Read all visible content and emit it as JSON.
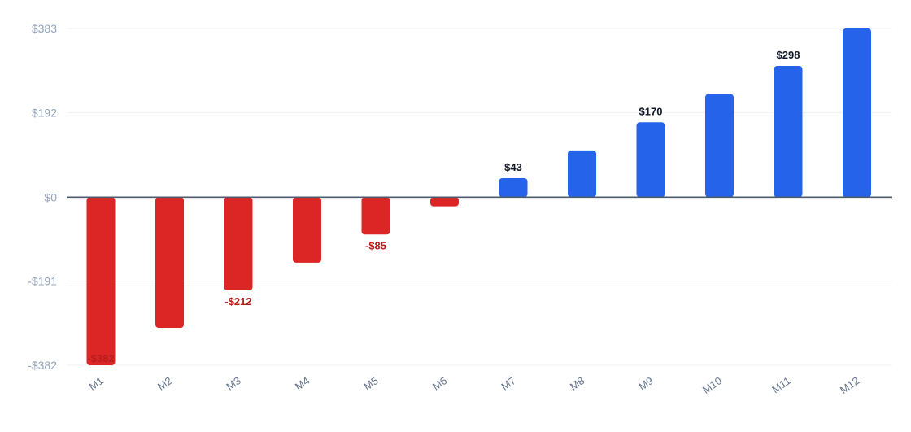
{
  "chart_data": {
    "type": "bar",
    "title": "",
    "xlabel": "",
    "ylabel": "",
    "categories": [
      "M1",
      "M2",
      "M3",
      "M4",
      "M5",
      "M6",
      "M7",
      "M8",
      "M9",
      "M10",
      "M11",
      "M12"
    ],
    "values": [
      -382,
      -297,
      -212,
      -149,
      -85,
      -21,
      43,
      106,
      170,
      234,
      298,
      383
    ],
    "ylim": [
      -382,
      383
    ],
    "yticks": [
      383,
      192,
      0,
      -191,
      -382
    ],
    "ytick_labels": [
      "$383",
      "$192",
      "$0",
      "-$191",
      "-$382"
    ],
    "data_labels": [
      {
        "category": "M1",
        "text": "-$382"
      },
      {
        "category": "M3",
        "text": "-$212"
      },
      {
        "category": "M5",
        "text": "-$85"
      },
      {
        "category": "M7",
        "text": "$43"
      },
      {
        "category": "M9",
        "text": "$170"
      },
      {
        "category": "M11",
        "text": "$298"
      }
    ],
    "colors": {
      "positive": "#2563eb",
      "negative": "#dc2626",
      "positive_label": "#111827",
      "negative_label": "#b91c1c"
    },
    "grid": true,
    "legend": "none"
  }
}
